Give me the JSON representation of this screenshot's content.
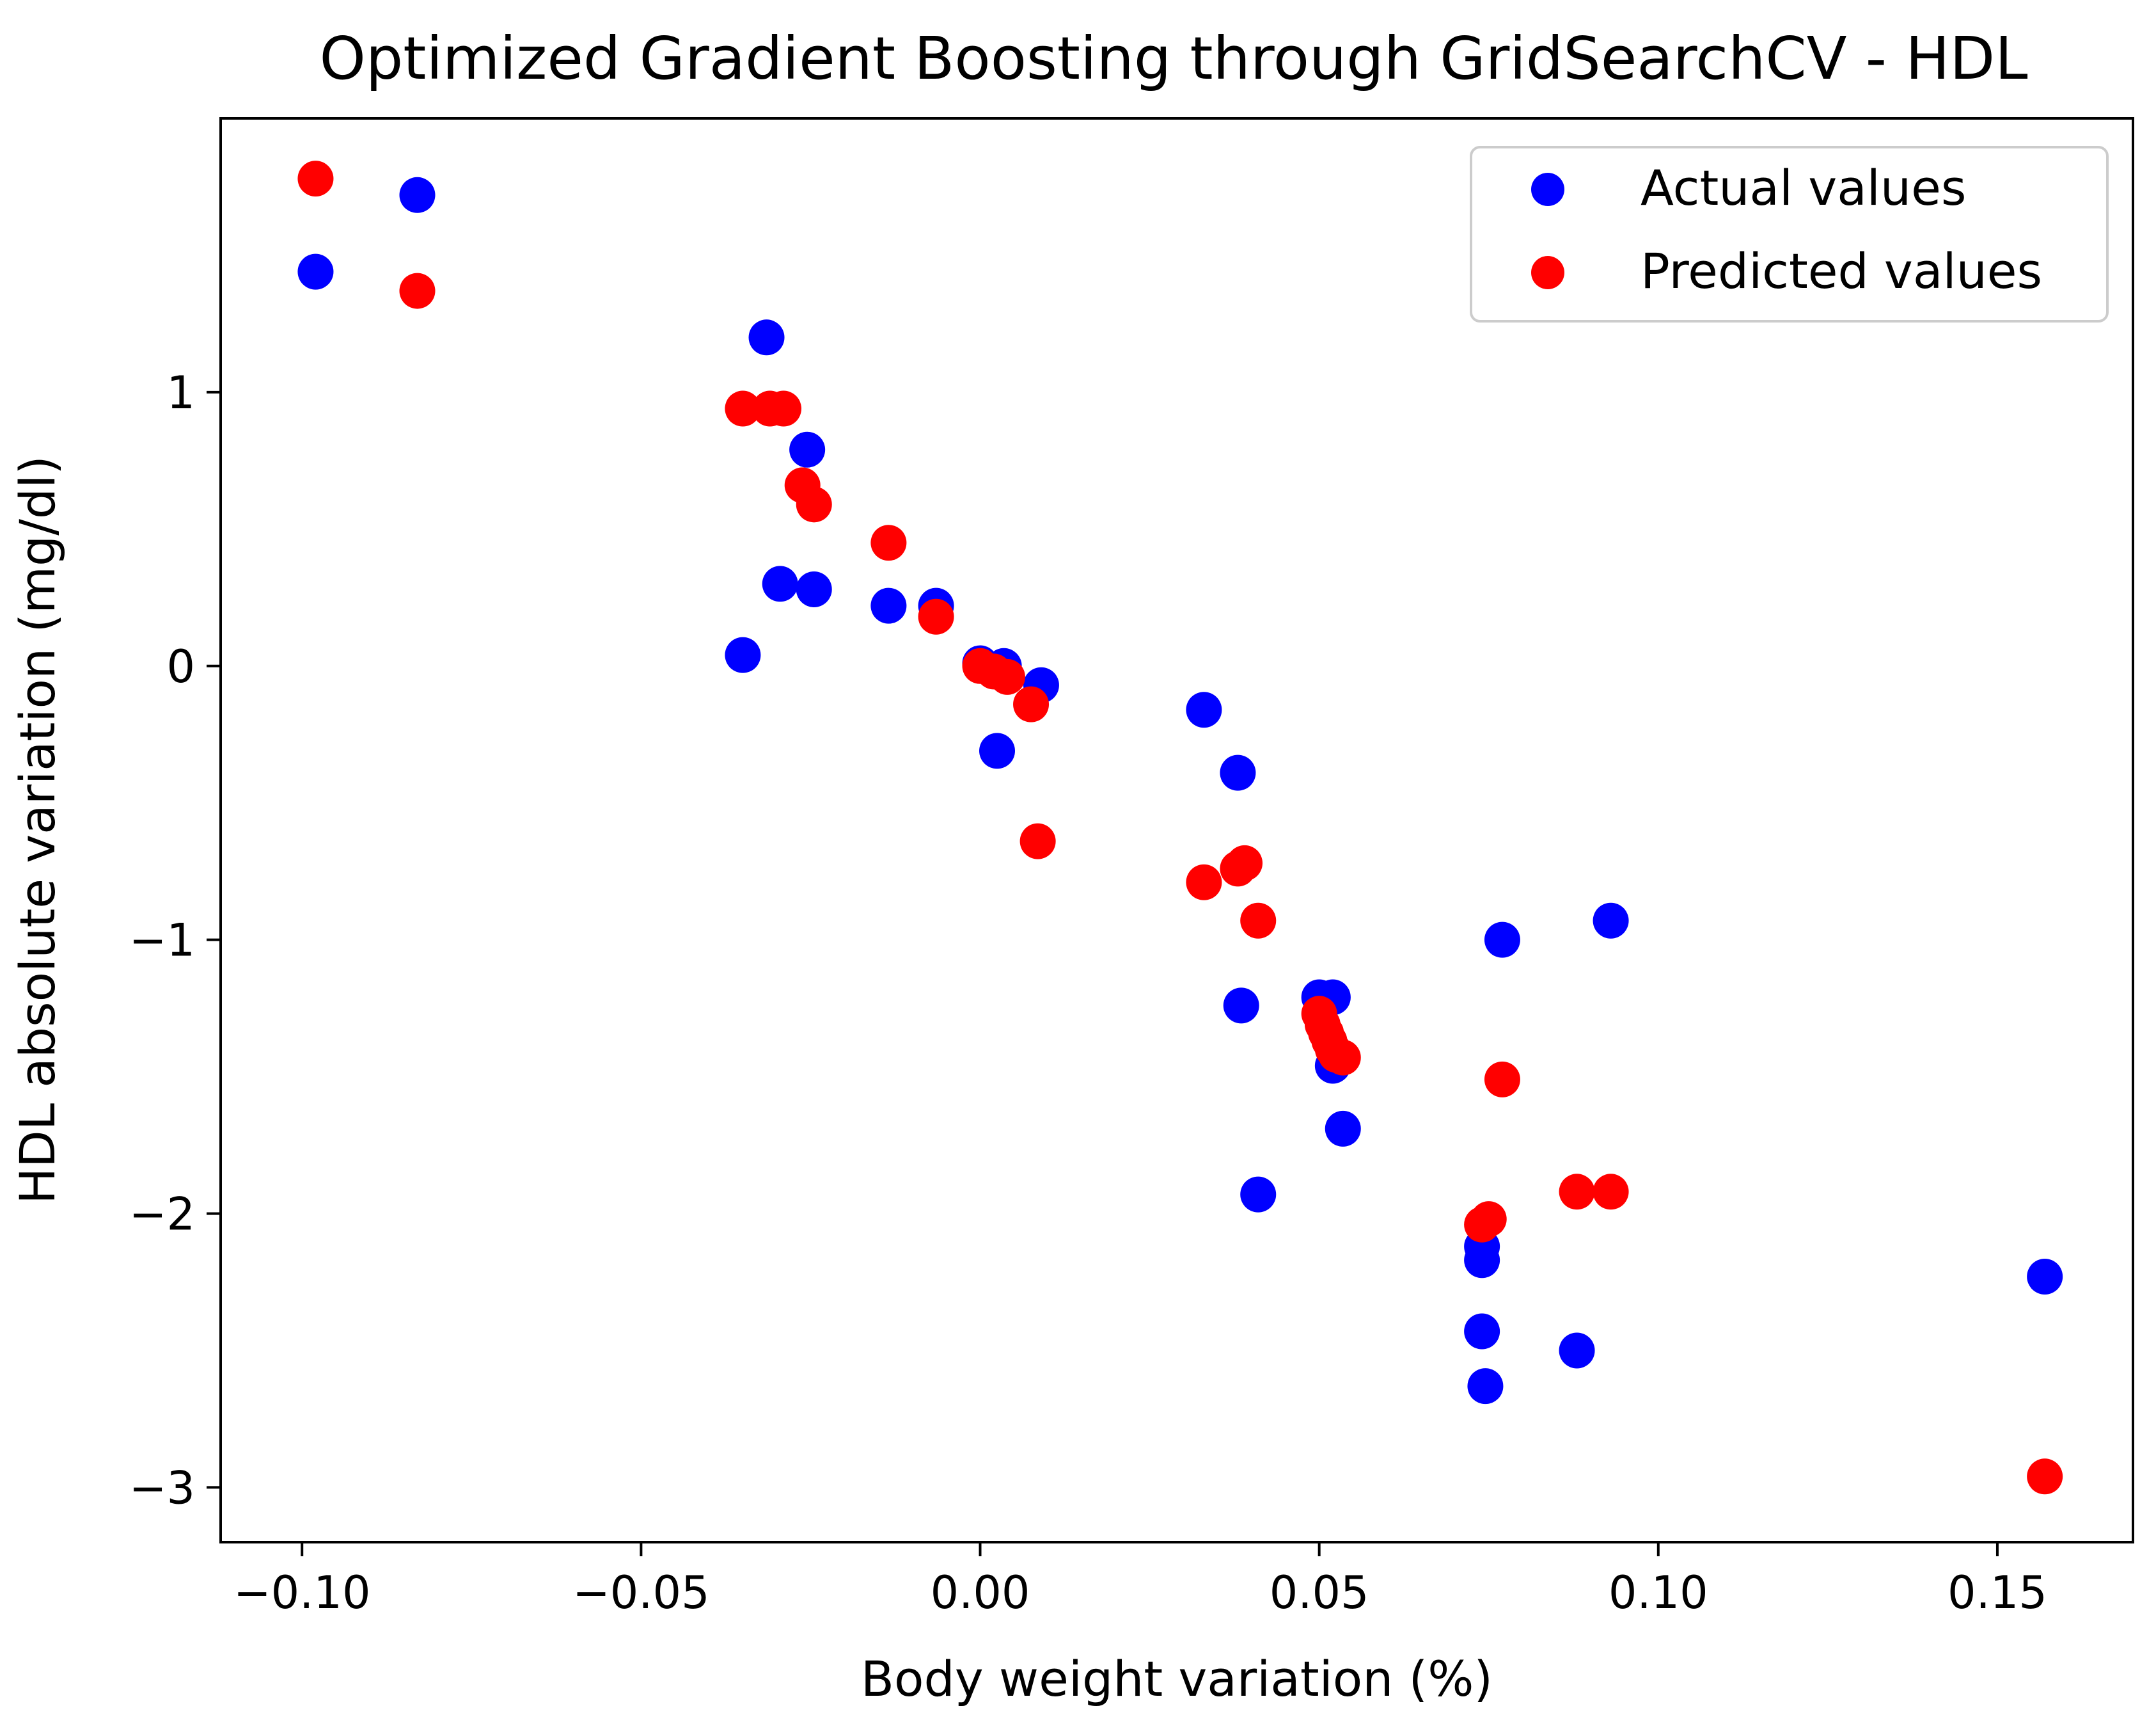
{
  "chart_data": {
    "type": "scatter",
    "title": "Optimized Gradient Boosting through GridSearchCV - HDL",
    "xlabel": "Body weight variation (%)",
    "ylabel": "HDL absolute variation (mg/dl)",
    "xlim": [
      -0.112,
      0.17
    ],
    "ylim": [
      -3.2,
      2.0
    ],
    "xticks": [
      -0.1,
      -0.05,
      0.0,
      0.05,
      0.1,
      0.15
    ],
    "xtick_labels": [
      "−0.10",
      "−0.05",
      "0.00",
      "0.05",
      "0.10",
      "0.15"
    ],
    "yticks": [
      1,
      0,
      -1,
      -2,
      -3
    ],
    "ytick_labels": [
      "1",
      "0",
      "−1",
      "−2",
      "−3"
    ],
    "grid": false,
    "legend_position": "top-right",
    "series": [
      {
        "name": "Actual values",
        "color": "#0000ff",
        "points": [
          [
            -0.098,
            1.44
          ],
          [
            -0.083,
            1.72
          ],
          [
            -0.0315,
            1.2
          ],
          [
            -0.0255,
            0.79
          ],
          [
            -0.0295,
            0.3
          ],
          [
            -0.0245,
            0.28
          ],
          [
            -0.035,
            0.04
          ],
          [
            -0.0135,
            0.22
          ],
          [
            -0.0065,
            0.22
          ],
          [
            0.0,
            0.01
          ],
          [
            0.0035,
            0.0
          ],
          [
            0.009,
            -0.07
          ],
          [
            0.0025,
            -0.31
          ],
          [
            0.033,
            -0.16
          ],
          [
            0.038,
            -0.39
          ],
          [
            0.0385,
            -1.24
          ],
          [
            0.05,
            -1.21
          ],
          [
            0.052,
            -1.21
          ],
          [
            0.052,
            -1.46
          ],
          [
            0.0535,
            -1.69
          ],
          [
            0.041,
            -1.93
          ],
          [
            0.077,
            -1.0
          ],
          [
            0.093,
            -0.93
          ],
          [
            0.074,
            -2.12
          ],
          [
            0.074,
            -2.17
          ],
          [
            0.074,
            -2.43
          ],
          [
            0.0745,
            -2.63
          ],
          [
            0.088,
            -2.5
          ],
          [
            0.157,
            -2.23
          ]
        ]
      },
      {
        "name": "Predicted values",
        "color": "#ff0000",
        "points": [
          [
            -0.098,
            1.78
          ],
          [
            -0.083,
            1.37
          ],
          [
            -0.035,
            0.94
          ],
          [
            -0.031,
            0.94
          ],
          [
            -0.029,
            0.94
          ],
          [
            -0.0262,
            0.66
          ],
          [
            -0.0245,
            0.59
          ],
          [
            -0.0135,
            0.45
          ],
          [
            -0.0065,
            0.18
          ],
          [
            0.0,
            0.0
          ],
          [
            0.002,
            -0.02
          ],
          [
            0.004,
            -0.04
          ],
          [
            0.0075,
            -0.14
          ],
          [
            0.0085,
            -0.64
          ],
          [
            0.033,
            -0.79
          ],
          [
            0.038,
            -0.74
          ],
          [
            0.039,
            -0.72
          ],
          [
            0.041,
            -0.93
          ],
          [
            0.05,
            -1.27
          ],
          [
            0.0505,
            -1.31
          ],
          [
            0.051,
            -1.34
          ],
          [
            0.0515,
            -1.37
          ],
          [
            0.052,
            -1.4
          ],
          [
            0.0525,
            -1.42
          ],
          [
            0.0535,
            -1.43
          ],
          [
            0.074,
            -2.04
          ],
          [
            0.075,
            -2.02
          ],
          [
            0.077,
            -1.51
          ],
          [
            0.088,
            -1.92
          ],
          [
            0.093,
            -1.92
          ],
          [
            0.157,
            -2.96
          ]
        ]
      }
    ]
  }
}
